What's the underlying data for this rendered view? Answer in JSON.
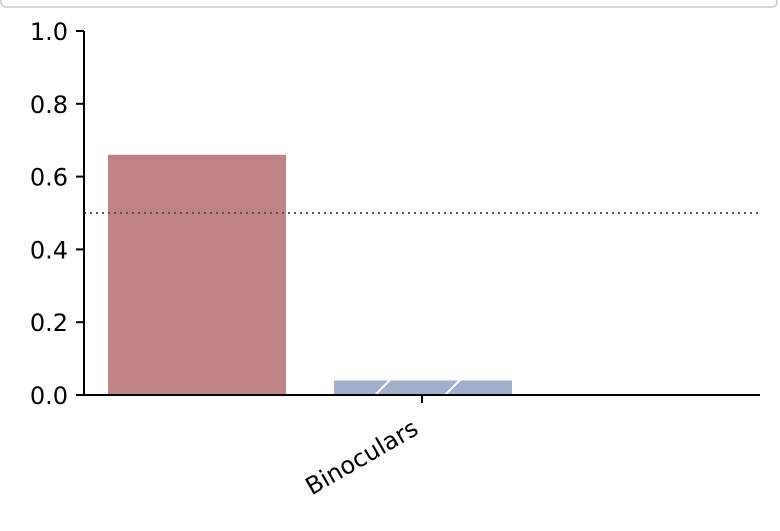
{
  "chart_data": {
    "type": "bar",
    "categories": [
      "Binoculars"
    ],
    "series": [
      {
        "values": [
          0.66
        ],
        "color": "#c08487",
        "hatch": false
      },
      {
        "values": [
          0.04
        ],
        "color": "#a2b0cc",
        "hatch": true
      }
    ],
    "reference_line": 0.5,
    "ylim": [
      0.0,
      1.0
    ],
    "yticks": [
      "0.0",
      "0.2",
      "0.4",
      "0.6",
      "0.8",
      "1.0"
    ],
    "xlabel": "",
    "ylabel": "",
    "grid": false
  }
}
